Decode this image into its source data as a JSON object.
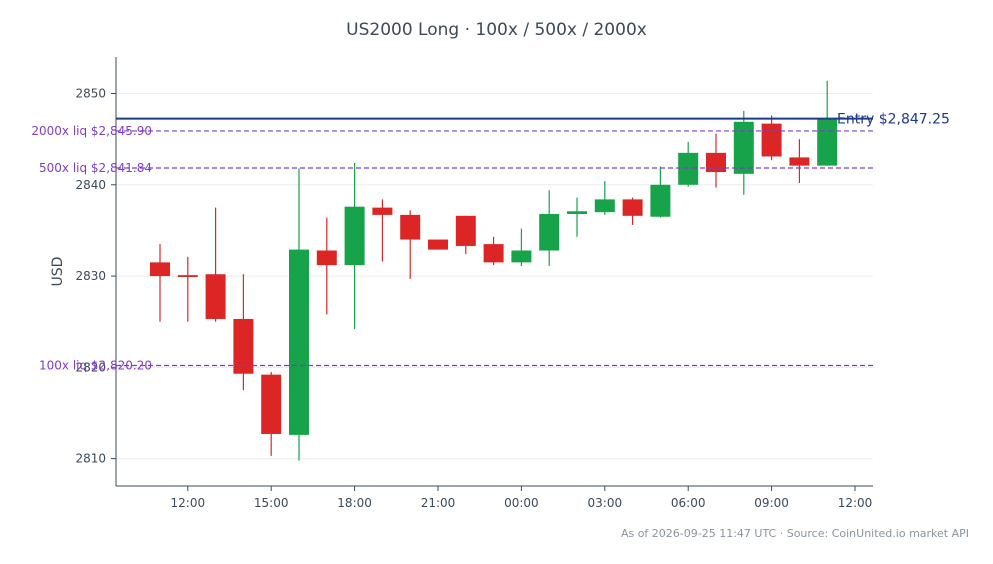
{
  "chart_data": {
    "type": "candlestick",
    "title": "US2000 Long · 100x / 500x / 2000x",
    "ylabel": "USD",
    "xlabel": "",
    "ylim": [
      2807,
      2854
    ],
    "yticks": [
      2810,
      2820,
      2830,
      2840,
      2850
    ],
    "xticks": [
      "12:00",
      "15:00",
      "18:00",
      "21:00",
      "00:00",
      "03:00",
      "06:00",
      "09:00",
      "12:00"
    ],
    "grid": "horizontal",
    "colors": {
      "up": "#16a34a",
      "down": "#dc2626",
      "entry": "#1e3a8a",
      "liq": "#7e3fbf"
    },
    "entry": {
      "label": "Entry $2,847.25",
      "value": 2847.25
    },
    "liquidations": [
      {
        "label": "2000x liq $2,845.90",
        "value": 2845.9
      },
      {
        "label": "500x liq $2,841.84",
        "value": 2841.84
      },
      {
        "label": "100x liq $2,820.20",
        "value": 2820.2
      }
    ],
    "candles": [
      {
        "time": "11:00",
        "open": 2831.5,
        "high": 2833.5,
        "low": 2825.0,
        "close": 2830.0
      },
      {
        "time": "12:00",
        "open": 2830.1,
        "high": 2832.1,
        "low": 2825.0,
        "close": 2829.9
      },
      {
        "time": "13:00",
        "open": 2830.2,
        "high": 2837.5,
        "low": 2825.0,
        "close": 2825.3
      },
      {
        "time": "14:00",
        "open": 2825.3,
        "high": 2830.2,
        "low": 2817.5,
        "close": 2819.3
      },
      {
        "time": "15:00",
        "open": 2819.2,
        "high": 2819.5,
        "low": 2810.3,
        "close": 2812.7
      },
      {
        "time": "16:00",
        "open": 2812.6,
        "high": 2841.8,
        "low": 2809.8,
        "close": 2832.9
      },
      {
        "time": "17:00",
        "open": 2832.8,
        "high": 2836.4,
        "low": 2825.8,
        "close": 2831.2
      },
      {
        "time": "18:00",
        "open": 2831.2,
        "high": 2842.4,
        "low": 2824.2,
        "close": 2837.6
      },
      {
        "time": "19:00",
        "open": 2837.5,
        "high": 2838.4,
        "low": 2831.6,
        "close": 2836.7
      },
      {
        "time": "20:00",
        "open": 2836.7,
        "high": 2837.2,
        "low": 2829.7,
        "close": 2834.0
      },
      {
        "time": "21:00",
        "open": 2834.0,
        "high": 2834.0,
        "low": 2833.0,
        "close": 2832.9
      },
      {
        "time": "22:00",
        "open": 2836.6,
        "high": 2836.6,
        "low": 2832.4,
        "close": 2833.3
      },
      {
        "time": "23:00",
        "open": 2833.5,
        "high": 2834.3,
        "low": 2831.2,
        "close": 2831.5
      },
      {
        "time": "00:00",
        "open": 2831.5,
        "high": 2835.2,
        "low": 2831.1,
        "close": 2832.8
      },
      {
        "time": "01:00",
        "open": 2832.8,
        "high": 2839.4,
        "low": 2831.1,
        "close": 2836.8
      },
      {
        "time": "02:00",
        "open": 2836.8,
        "high": 2838.6,
        "low": 2834.3,
        "close": 2837.1
      },
      {
        "time": "03:00",
        "open": 2837.0,
        "high": 2840.4,
        "low": 2836.7,
        "close": 2838.4
      },
      {
        "time": "04:00",
        "open": 2838.4,
        "high": 2838.6,
        "low": 2835.6,
        "close": 2836.6
      },
      {
        "time": "05:00",
        "open": 2836.5,
        "high": 2842.0,
        "low": 2836.4,
        "close": 2840.0
      },
      {
        "time": "06:00",
        "open": 2840.0,
        "high": 2844.7,
        "low": 2839.8,
        "close": 2843.5
      },
      {
        "time": "07:00",
        "open": 2843.5,
        "high": 2845.6,
        "low": 2839.7,
        "close": 2841.4
      },
      {
        "time": "08:00",
        "open": 2841.2,
        "high": 2848.1,
        "low": 2838.9,
        "close": 2846.9
      },
      {
        "time": "09:00",
        "open": 2846.7,
        "high": 2847.6,
        "low": 2842.7,
        "close": 2843.1
      },
      {
        "time": "10:00",
        "open": 2843.0,
        "high": 2845.0,
        "low": 2840.2,
        "close": 2842.1
      },
      {
        "time": "11:00",
        "open": 2842.1,
        "high": 2851.4,
        "low": 2842.1,
        "close": 2847.2
      }
    ]
  },
  "footer": "As of 2026-09-25 11:47 UTC · Source: CoinUnited.io market API"
}
